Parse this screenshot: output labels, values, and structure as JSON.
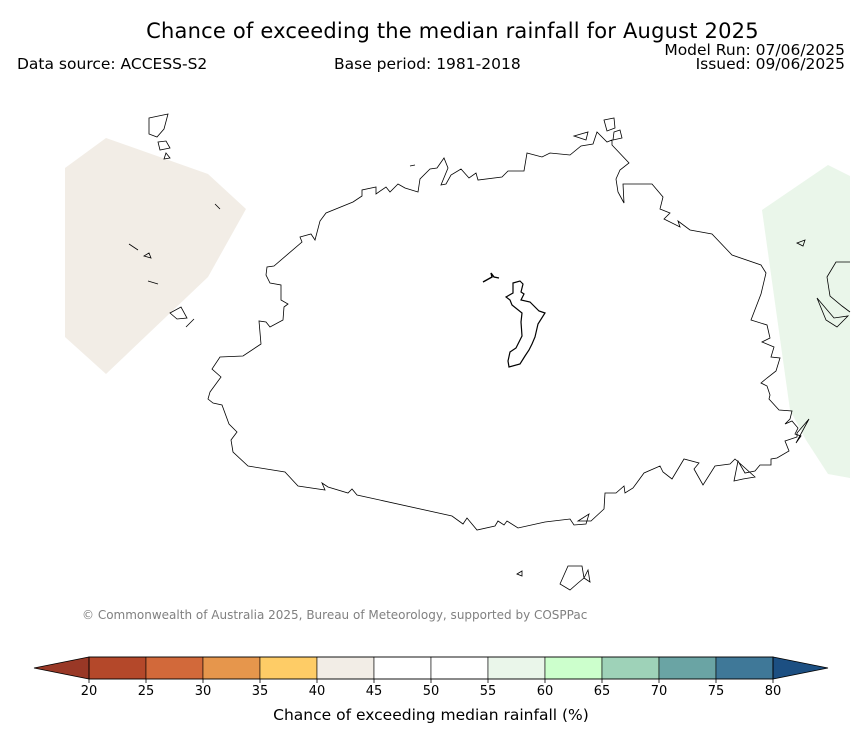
{
  "header": {
    "title": "Chance of exceeding the median rainfall for August 2025",
    "data_source": "Data source: ACCESS-S2",
    "base_period": "Base period: 1981-2018",
    "model_run": "Model Run: 07/06/2025",
    "issued": "Issued: 09/06/2025"
  },
  "footer": {
    "copyright": "© Commonwealth of Australia 2025, Bureau of Meteorology, supported by COSPPac"
  },
  "legend": {
    "label": "Chance of exceeding median rainfall (%)",
    "ticks": [
      "20",
      "25",
      "30",
      "35",
      "40",
      "45",
      "50",
      "55",
      "60",
      "65",
      "70",
      "75",
      "80"
    ],
    "bins": [
      {
        "from": 20,
        "to": 25,
        "color": "#b4482a"
      },
      {
        "from": 25,
        "to": 30,
        "color": "#d2693a"
      },
      {
        "from": 30,
        "to": 35,
        "color": "#e6964c"
      },
      {
        "from": 35,
        "to": 40,
        "color": "#fecc66"
      },
      {
        "from": 40,
        "to": 45,
        "color": "#f2ede6"
      },
      {
        "from": 45,
        "to": 50,
        "color": "#ffffff"
      },
      {
        "from": 50,
        "to": 55,
        "color": "#ffffff"
      },
      {
        "from": 55,
        "to": 60,
        "color": "#eaf6ea"
      },
      {
        "from": 60,
        "to": 65,
        "color": "#ccffcc"
      },
      {
        "from": 65,
        "to": 70,
        "color": "#9ed2b8"
      },
      {
        "from": 70,
        "to": 75,
        "color": "#6aa4a4"
      },
      {
        "from": 75,
        "to": 80,
        "color": "#3f7898"
      }
    ],
    "under_color": "#993826",
    "over_color": "#1c4f82"
  },
  "map": {
    "regions": [
      {
        "name": "western-region",
        "category": "40-45",
        "color": "#f2ede6"
      },
      {
        "name": "eastern-region",
        "category": "55-60",
        "color": "#eaf6ea"
      }
    ]
  }
}
